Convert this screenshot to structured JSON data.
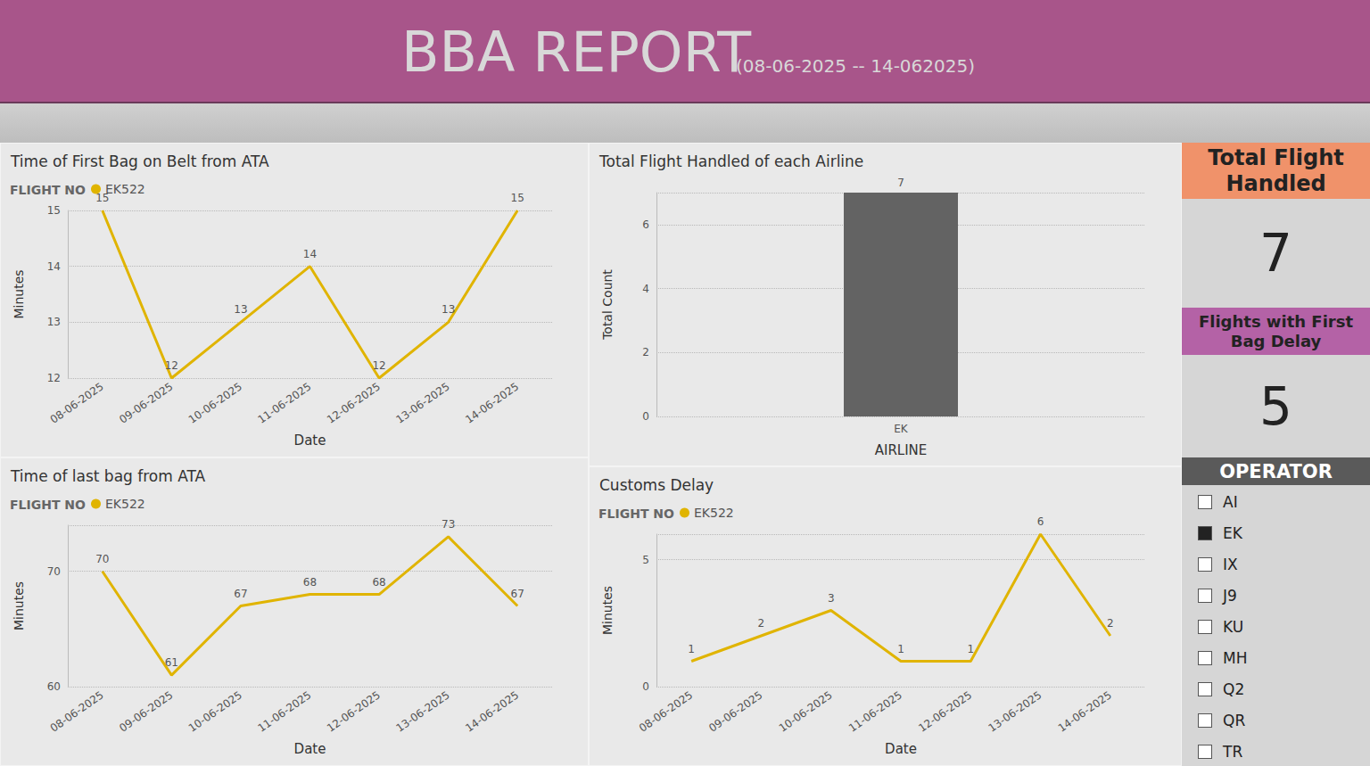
{
  "header": {
    "title": "BBA REPORT",
    "subtitle": "(08-06-2025 -- 14-062025)",
    "color": "#a8558a"
  },
  "chart_data": [
    {
      "type": "line",
      "title": "Time of First Bag on Belt from ATA",
      "legend_title": "FLIGHT NO",
      "legend": "top-left",
      "x_label": "Date",
      "y_label": "Minutes",
      "categories": [
        "08-06-2025",
        "09-06-2025",
        "10-06-2025",
        "11-06-2025",
        "12-06-2025",
        "13-06-2025",
        "14-06-2025"
      ],
      "series": [
        {
          "name": "EK522",
          "color": "#e0b400",
          "values": [
            15,
            12,
            13,
            14,
            12,
            13,
            15
          ]
        }
      ],
      "ylim": [
        12,
        15
      ],
      "yticks": [
        12,
        13,
        14,
        15
      ],
      "grid": true,
      "data_labels": true
    },
    {
      "type": "bar",
      "title": "Total Flight Handled of each Airline",
      "x_label": "AIRLINE",
      "y_label": "Total Count",
      "categories": [
        "EK"
      ],
      "values": [
        7
      ],
      "color": "#636363",
      "ylim": [
        0,
        7
      ],
      "yticks": [
        0,
        2,
        4,
        6
      ],
      "grid": true,
      "data_labels": true
    },
    {
      "type": "line",
      "title": "Time of last bag from ATA",
      "legend_title": "FLIGHT NO",
      "legend": "top-left",
      "x_label": "Date",
      "y_label": "Minutes",
      "categories": [
        "08-06-2025",
        "09-06-2025",
        "10-06-2025",
        "11-06-2025",
        "12-06-2025",
        "13-06-2025",
        "14-06-2025"
      ],
      "series": [
        {
          "name": "EK522",
          "color": "#e0b400",
          "values": [
            70,
            61,
            67,
            68,
            68,
            73,
            67
          ]
        }
      ],
      "ylim": [
        60,
        74
      ],
      "yticks": [
        60,
        70
      ],
      "grid": true,
      "data_labels": true
    },
    {
      "type": "line",
      "title": "Customs Delay",
      "legend_title": "FLIGHT NO",
      "legend": "top-left",
      "x_label": "Date",
      "y_label": "Minutes",
      "categories": [
        "08-06-2025",
        "09-06-2025",
        "10-06-2025",
        "11-06-2025",
        "12-06-2025",
        "13-06-2025",
        "14-06-2025"
      ],
      "series": [
        {
          "name": "EK522",
          "color": "#e0b400",
          "values": [
            1,
            2,
            3,
            1,
            1,
            6,
            2
          ]
        }
      ],
      "ylim": [
        0,
        6
      ],
      "yticks": [
        0,
        5
      ],
      "grid": true,
      "data_labels": true
    }
  ],
  "cards": [
    {
      "title": "Total Flight Handled",
      "value": 7,
      "color": "#f0926a"
    },
    {
      "title": "Flights with First Bag Delay",
      "value": 5,
      "color": "#b462a6"
    }
  ],
  "slicer": {
    "title": "OPERATOR",
    "options": [
      "AI",
      "EK",
      "IX",
      "J9",
      "KU",
      "MH",
      "Q2",
      "QR",
      "TR"
    ],
    "selected": [
      "EK"
    ]
  }
}
